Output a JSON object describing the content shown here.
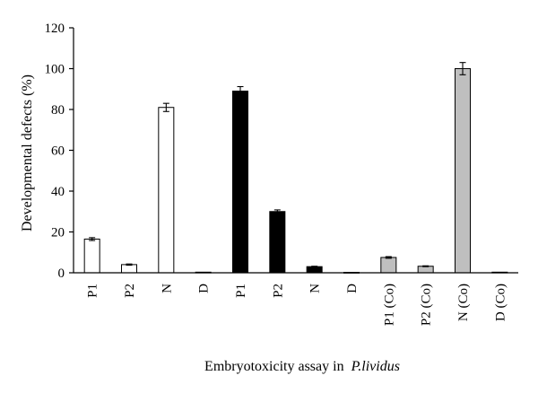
{
  "chart_data": {
    "type": "bar",
    "title": "",
    "xlabel": "Embryotoxicity assay in",
    "xlabel_italic": "P.lividus",
    "ylabel": "Developmental defects (%)",
    "ylim": [
      0,
      120
    ],
    "yticks": [
      0,
      20,
      40,
      60,
      80,
      100,
      120
    ],
    "grid": false,
    "categories": [
      "P1",
      "P2",
      "N",
      "D",
      "P1",
      "P2",
      "N",
      "D",
      "P1 (Co)",
      "P2 (Co)",
      "N (Co)",
      "D (Co)"
    ],
    "values": [
      16.5,
      4,
      81,
      0.3,
      89,
      30,
      3,
      0.2,
      7.5,
      3.2,
      100,
      0.3
    ],
    "errors": [
      0.7,
      0.3,
      2,
      0,
      2.2,
      0.8,
      0.2,
      0,
      0.4,
      0.2,
      3,
      0
    ],
    "colors": [
      "#ffffff",
      "#ffffff",
      "#ffffff",
      "#ffffff",
      "#000000",
      "#000000",
      "#000000",
      "#000000",
      "#bfbfbf",
      "#bfbfbf",
      "#bfbfbf",
      "#bfbfbf"
    ]
  }
}
